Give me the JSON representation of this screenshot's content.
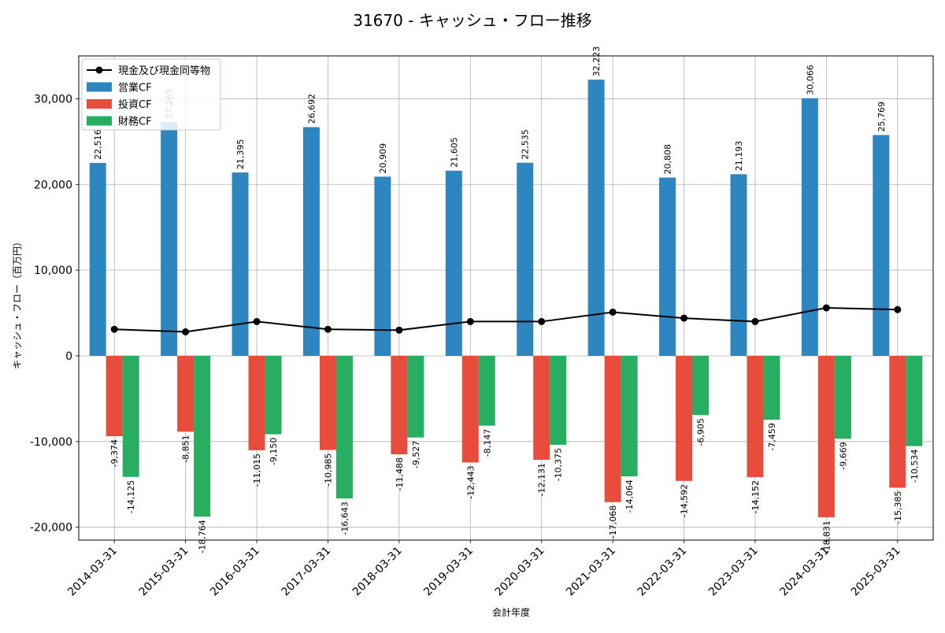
{
  "chart_data": {
    "type": "bar",
    "title": "31670 - キャッシュ・フロー推移",
    "xlabel": "会計年度",
    "ylabel": "キャッシュ・フロー（百万円）",
    "ylim": [
      -21500,
      35000
    ],
    "yticks": [
      -20000,
      -10000,
      0,
      10000,
      20000,
      30000
    ],
    "ytick_labels": [
      "-20,000",
      "-10,000",
      "0",
      "10,000",
      "20,000",
      "30,000"
    ],
    "grid": true,
    "legend_position": "top-left",
    "categories": [
      "2014-03-31",
      "2015-03-31",
      "2016-03-31",
      "2017-03-31",
      "2018-03-31",
      "2019-03-31",
      "2020-03-31",
      "2021-03-31",
      "2022-03-31",
      "2023-03-31",
      "2024-03-31",
      "2025-03-31"
    ],
    "series": [
      {
        "name": "営業CF",
        "kind": "bar",
        "color": "#2e86c1",
        "values": [
          22516,
          27265,
          21395,
          26692,
          20909,
          21605,
          22535,
          32223,
          20808,
          21193,
          30066,
          25769
        ],
        "labels": [
          "22,516",
          "27,265",
          "21,395",
          "26,692",
          "20,909",
          "21,605",
          "22,535",
          "32,223",
          "20,808",
          "21,193",
          "30,066",
          "25,769"
        ]
      },
      {
        "name": "投資CF",
        "kind": "bar",
        "color": "#e74c3c",
        "values": [
          -9374,
          -8851,
          -11015,
          -10985,
          -11488,
          -12443,
          -12131,
          -17068,
          -14592,
          -14152,
          -18831,
          -15385
        ],
        "labels": [
          "-9,374",
          "-8,851",
          "-11,015",
          "-10,985",
          "-11,488",
          "-12,443",
          "-12,131",
          "-17,068",
          "-14,592",
          "-14,152",
          "-18,831",
          "-15,385"
        ]
      },
      {
        "name": "財務CF",
        "kind": "bar",
        "color": "#27ae60",
        "values": [
          -14125,
          -18764,
          -9150,
          -16643,
          -9527,
          -8147,
          -10375,
          -14064,
          -6905,
          -7459,
          -9669,
          -10534
        ],
        "labels": [
          "-14,125",
          "-18,764",
          "-9,150",
          "-16,643",
          "-9,527",
          "-8,147",
          "-10,375",
          "-14,064",
          "-6,905",
          "-7,459",
          "-9,669",
          "-10,534"
        ]
      },
      {
        "name": "現金及び現金同等物",
        "kind": "line",
        "color": "#000000",
        "values": [
          3100,
          2800,
          4000,
          3100,
          3000,
          4000,
          4000,
          5100,
          4400,
          4000,
          5600,
          5400
        ]
      }
    ],
    "legend_order": [
      3,
      0,
      1,
      2
    ]
  }
}
